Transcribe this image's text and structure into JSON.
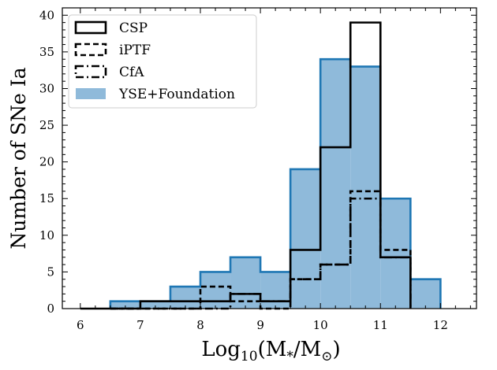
{
  "chart_data": {
    "type": "histogram",
    "xlabel": {
      "base": "Log",
      "sub": "10",
      "rest": "(M",
      "star_sub": "*",
      "mid": "/M",
      "sun_sub": "⊙",
      "end": ")"
    },
    "ylabel": "Number of SNe Ia",
    "xlim": [
      5.7,
      12.6
    ],
    "ylim": [
      0,
      41
    ],
    "xticks": [
      6,
      7,
      8,
      9,
      10,
      11,
      12
    ],
    "yticks": [
      0,
      5,
      10,
      15,
      20,
      25,
      30,
      35,
      40
    ],
    "grid": false,
    "legend_position": "top-left",
    "series": [
      {
        "name": "YSE+Foundation",
        "style": "filled",
        "fill": "#8fbada",
        "edge": "#1f77b4",
        "edges": [
          6.5,
          7.0,
          7.5,
          8.0,
          8.5,
          9.0,
          9.5,
          10.0,
          10.5,
          11.0,
          11.5,
          12.0
        ],
        "counts": [
          1,
          1,
          3,
          5,
          7,
          5,
          19,
          34,
          33,
          15,
          4
        ]
      },
      {
        "name": "CfA",
        "style": "dashdot",
        "color": "#000000",
        "edges": [
          6.5,
          7.0,
          7.5,
          8.0,
          8.5,
          9.0,
          9.5,
          10.0,
          10.5,
          11.0,
          11.5
        ],
        "counts": [
          0,
          0,
          0,
          0,
          2,
          1,
          4,
          6,
          15,
          7
        ]
      },
      {
        "name": "iPTF",
        "style": "dashed",
        "color": "#000000",
        "edges": [
          6.5,
          7.0,
          7.5,
          8.0,
          8.5,
          9.0,
          9.5,
          10.0,
          10.5,
          11.0,
          11.5
        ],
        "counts": [
          0,
          0,
          0,
          3,
          1,
          0,
          4,
          6,
          16,
          8
        ]
      },
      {
        "name": "CSP",
        "style": "solid",
        "color": "#000000",
        "edges": [
          6.0,
          6.5,
          7.0,
          7.5,
          8.0,
          8.5,
          9.0,
          9.5,
          10.0,
          10.5,
          11.0,
          11.5
        ],
        "counts": [
          0,
          0,
          1,
          1,
          1,
          2,
          1,
          8,
          22,
          39,
          7
        ]
      }
    ],
    "legend": [
      {
        "label": "CSP",
        "style": "solid"
      },
      {
        "label": "iPTF",
        "style": "dashed"
      },
      {
        "label": "CfA",
        "style": "dashdot"
      },
      {
        "label": "YSE+Foundation",
        "style": "filled"
      }
    ]
  }
}
